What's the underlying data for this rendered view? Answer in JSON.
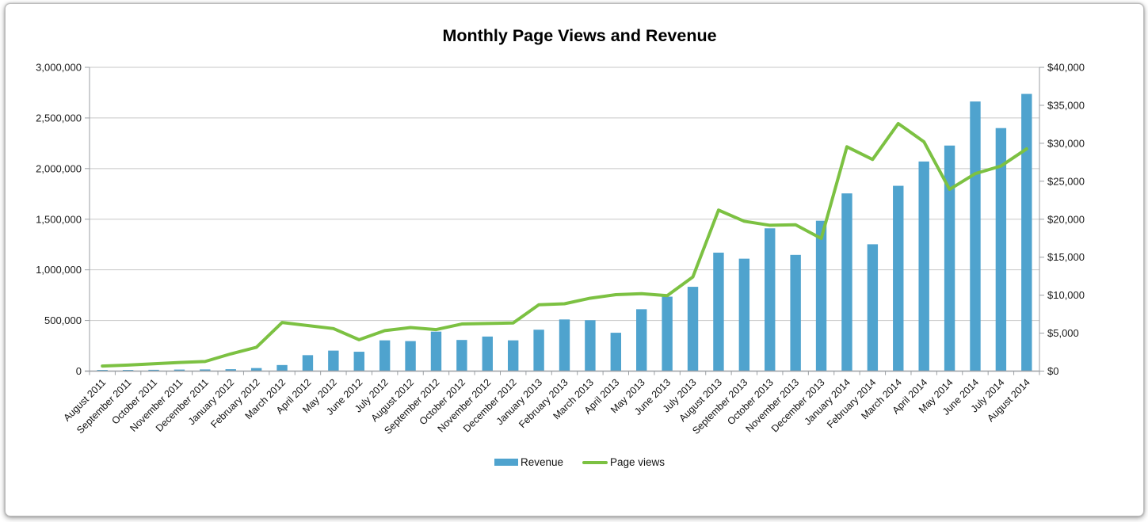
{
  "chart_data": {
    "type": "combo-bar-line-dual-axis",
    "title": "Monthly Page Views and Revenue",
    "legend_position": "bottom",
    "grid": true,
    "colors": {
      "grid": "#C7C7C7",
      "axis": "#9B9FA3",
      "text": "#1A1A1A"
    },
    "categories": [
      "August 2011",
      "September 2011",
      "October 2011",
      "November 2011",
      "December 2011",
      "January 2012",
      "February 2012",
      "March 2012",
      "April 2012",
      "May 2012",
      "June 2012",
      "July 2012",
      "August 2012",
      "September 2012",
      "October 2012",
      "November 2012",
      "December 2012",
      "January 2013",
      "February 2013",
      "March 2013",
      "April 2013",
      "May 2013",
      "June 2013",
      "July 2013",
      "August 2013",
      "September 2013",
      "October 2013",
      "November 2013",
      "December 2013",
      "January 2014",
      "February 2014",
      "March 2014",
      "April 2014",
      "May 2014",
      "June 2014",
      "July 2014",
      "August 2014"
    ],
    "series": [
      {
        "name": "Revenue",
        "type": "bar",
        "axis": "right",
        "color": "#4FA3CE",
        "values": [
          150,
          150,
          170,
          200,
          220,
          250,
          400,
          800,
          2100,
          2700,
          2550,
          4050,
          3950,
          5200,
          4100,
          4550,
          4050,
          5450,
          6800,
          6700,
          5050,
          8150,
          9800,
          11100,
          15600,
          14800,
          18800,
          15300,
          19800,
          23400,
          16700,
          24400,
          27600,
          29700,
          35500,
          32000,
          36500
        ]
      },
      {
        "name": "Page views",
        "type": "line",
        "axis": "left",
        "color": "#7CC142",
        "values": [
          50000,
          60000,
          72000,
          85000,
          95000,
          170000,
          235000,
          480000,
          450000,
          420000,
          310000,
          400000,
          430000,
          410000,
          465000,
          470000,
          475000,
          655000,
          665000,
          720000,
          755000,
          765000,
          745000,
          930000,
          1590000,
          1480000,
          1440000,
          1445000,
          1310000,
          2215000,
          2090000,
          2445000,
          2265000,
          1795000,
          1950000,
          2025000,
          2195000
        ]
      }
    ],
    "left_axis": {
      "min": 0,
      "max": 3000000,
      "step": 500000,
      "tick_labels": [
        "0",
        "500,000",
        "1,000,000",
        "1,500,000",
        "2,000,000",
        "2,500,000",
        "3,000,000"
      ]
    },
    "right_axis": {
      "min": 0,
      "max": 40000,
      "step": 5000,
      "tick_labels": [
        "$0",
        "$5,000",
        "$10,000",
        "$15,000",
        "$20,000",
        "$25,000",
        "$30,000",
        "$35,000",
        "$40,000"
      ]
    }
  }
}
